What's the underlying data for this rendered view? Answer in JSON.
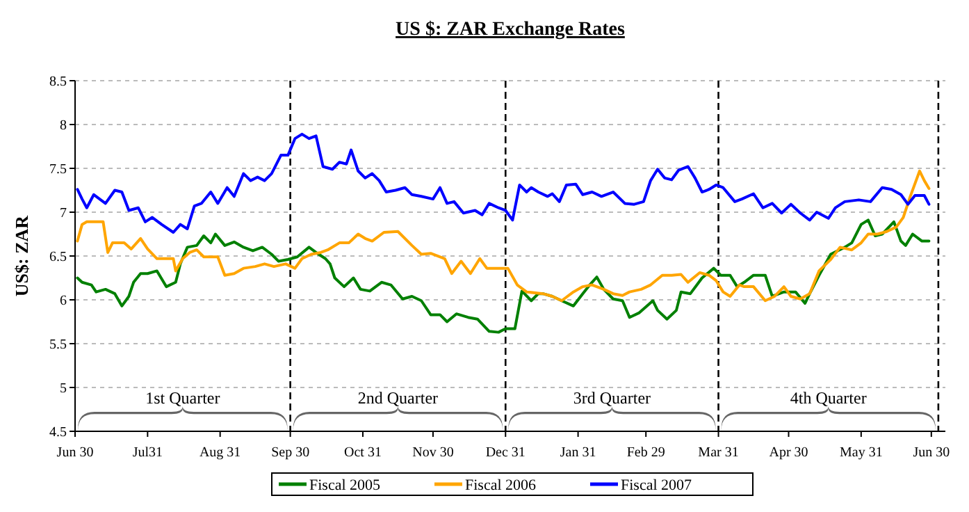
{
  "chart_data": {
    "type": "line",
    "title": "US $: ZAR Exchange Rates",
    "ylabel": "US$: ZAR",
    "xlim": [
      "2007-06-30",
      "2008-07-06"
    ],
    "xticks": [
      {
        "value": "2007-06-30",
        "label": "Jun 30"
      },
      {
        "value": "2007-07-31",
        "label": "Jul31"
      },
      {
        "value": "2007-08-31",
        "label": "Aug 31"
      },
      {
        "value": "2007-09-30",
        "label": "Sep 30"
      },
      {
        "value": "2007-10-31",
        "label": "Oct 31"
      },
      {
        "value": "2007-11-30",
        "label": "Nov 30"
      },
      {
        "value": "2007-12-31",
        "label": "Dec 31"
      },
      {
        "value": "2008-01-31",
        "label": "Jan 31"
      },
      {
        "value": "2008-02-29",
        "label": "Feb 29"
      },
      {
        "value": "2008-03-31",
        "label": "Mar 31"
      },
      {
        "value": "2008-04-30",
        "label": "Apr 30"
      },
      {
        "value": "2008-05-31",
        "label": "May 31"
      },
      {
        "value": "2008-06-30",
        "label": "Jun 30"
      }
    ],
    "ylim": [
      4.5,
      8.5
    ],
    "yticks": [
      4.5,
      5,
      5.5,
      6,
      6.5,
      7,
      7.5,
      8,
      8.5
    ],
    "grid": "y",
    "legend": "bottom",
    "marker": "none",
    "line_style": "solid",
    "ref_lines": [
      {
        "axis": "x",
        "value": "2007-09-30",
        "color": "#000000",
        "line_style": "dashed"
      },
      {
        "axis": "x",
        "value": "2007-12-31",
        "color": "#000000",
        "line_style": "dashed"
      },
      {
        "axis": "x",
        "value": "2008-03-31",
        "color": "#000000",
        "line_style": "dashed"
      },
      {
        "axis": "x",
        "value": "2008-07-03",
        "color": "#000000",
        "line_style": "dashed"
      }
    ],
    "annotations": [
      "1st Quarter",
      "2nd Quarter",
      "3rd Quarter",
      "4th Quarter"
    ],
    "series": [
      {
        "name": "Fiscal 2005",
        "color": "#008000",
        "x": [
          "2007-07-01",
          "2007-07-03",
          "2007-07-07",
          "2007-07-09",
          "2007-07-13",
          "2007-07-17",
          "2007-07-20",
          "2007-07-23",
          "2007-07-25",
          "2007-07-28",
          "2007-07-31",
          "2007-08-04",
          "2007-08-08",
          "2007-08-12",
          "2007-08-14",
          "2007-08-17",
          "2007-08-21",
          "2007-08-24",
          "2007-08-27",
          "2007-08-29",
          "2007-09-02",
          "2007-09-06",
          "2007-09-10",
          "2007-09-14",
          "2007-09-18",
          "2007-09-22",
          "2007-09-25",
          "2007-09-29",
          "2007-10-03",
          "2007-10-08",
          "2007-10-11",
          "2007-10-15",
          "2007-10-17",
          "2007-10-19",
          "2007-10-23",
          "2007-10-27",
          "2007-10-30",
          "2007-11-03",
          "2007-11-08",
          "2007-11-12",
          "2007-11-17",
          "2007-11-21",
          "2007-11-25",
          "2007-11-29",
          "2007-12-03",
          "2007-12-06",
          "2007-12-10",
          "2007-12-15",
          "2007-12-19",
          "2007-12-24",
          "2007-12-28",
          "2007-12-31",
          "2008-01-04",
          "2008-01-07",
          "2008-01-11",
          "2008-01-14",
          "2008-01-16",
          "2008-01-20",
          "2008-01-24",
          "2008-01-29",
          "2008-02-02",
          "2008-02-05",
          "2008-02-08",
          "2008-02-11",
          "2008-02-15",
          "2008-02-19",
          "2008-02-22",
          "2008-02-26",
          "2008-03-03",
          "2008-03-05",
          "2008-03-09",
          "2008-03-13",
          "2008-03-15",
          "2008-03-19",
          "2008-03-24",
          "2008-03-29",
          "2008-04-01",
          "2008-04-05",
          "2008-04-08",
          "2008-04-11",
          "2008-04-15",
          "2008-04-20",
          "2008-04-23",
          "2008-04-28",
          "2008-05-03",
          "2008-05-07",
          "2008-05-09",
          "2008-05-13",
          "2008-05-18",
          "2008-05-24",
          "2008-05-27",
          "2008-05-31",
          "2008-06-03",
          "2008-06-06",
          "2008-06-09",
          "2008-06-14",
          "2008-06-17",
          "2008-06-19",
          "2008-06-22",
          "2008-06-26",
          "2008-06-29"
        ],
        "values": [
          6.25,
          6.2,
          6.17,
          6.09,
          6.12,
          6.07,
          5.93,
          6.04,
          6.2,
          6.3,
          6.3,
          6.33,
          6.15,
          6.2,
          6.41,
          6.6,
          6.62,
          6.73,
          6.65,
          6.75,
          6.62,
          6.66,
          6.6,
          6.56,
          6.6,
          6.52,
          6.44,
          6.46,
          6.49,
          6.6,
          6.54,
          6.47,
          6.41,
          6.25,
          6.15,
          6.25,
          6.12,
          6.1,
          6.2,
          6.17,
          6.01,
          6.04,
          5.99,
          5.83,
          5.83,
          5.75,
          5.84,
          5.8,
          5.78,
          5.64,
          5.63,
          5.67,
          5.67,
          6.1,
          5.99,
          6.07,
          6.07,
          6.04,
          5.99,
          5.93,
          6.07,
          6.17,
          6.26,
          6.12,
          6.01,
          5.99,
          5.8,
          5.85,
          5.99,
          5.88,
          5.78,
          5.88,
          6.09,
          6.07,
          6.25,
          6.36,
          6.28,
          6.28,
          6.15,
          6.2,
          6.28,
          6.28,
          6.04,
          6.09,
          6.09,
          5.96,
          6.07,
          6.28,
          6.52,
          6.6,
          6.65,
          6.86,
          6.91,
          6.73,
          6.75,
          6.89,
          6.67,
          6.62,
          6.75,
          6.67,
          6.67
        ]
      },
      {
        "name": "Fiscal 2006",
        "color": "#ffa500",
        "x": [
          "2007-07-01",
          "2007-07-03",
          "2007-07-05",
          "2007-07-12",
          "2007-07-14",
          "2007-07-16",
          "2007-07-21",
          "2007-07-24",
          "2007-07-28",
          "2007-07-31",
          "2007-08-04",
          "2007-08-11",
          "2007-08-12",
          "2007-08-15",
          "2007-08-18",
          "2007-08-21",
          "2007-08-24",
          "2007-08-30",
          "2007-09-02",
          "2007-09-06",
          "2007-09-10",
          "2007-09-15",
          "2007-09-19",
          "2007-09-23",
          "2007-09-28",
          "2007-10-02",
          "2007-10-05",
          "2007-10-09",
          "2007-10-13",
          "2007-10-16",
          "2007-10-21",
          "2007-10-25",
          "2007-10-29",
          "2007-11-01",
          "2007-11-04",
          "2007-11-09",
          "2007-11-15",
          "2007-11-21",
          "2007-11-25",
          "2007-11-29",
          "2007-12-05",
          "2007-12-08",
          "2007-12-12",
          "2007-12-16",
          "2007-12-20",
          "2007-12-23",
          "2007-12-28",
          "2008-01-01",
          "2008-01-05",
          "2008-01-09",
          "2008-01-16",
          "2008-01-20",
          "2008-01-24",
          "2008-01-29",
          "2008-02-02",
          "2008-02-06",
          "2008-02-11",
          "2008-02-15",
          "2008-02-19",
          "2008-02-22",
          "2008-02-27",
          "2008-03-02",
          "2008-03-07",
          "2008-03-11",
          "2008-03-15",
          "2008-03-18",
          "2008-03-23",
          "2008-03-27",
          "2008-03-30",
          "2008-04-02",
          "2008-04-05",
          "2008-04-09",
          "2008-04-11",
          "2008-04-15",
          "2008-04-20",
          "2008-04-24",
          "2008-04-28",
          "2008-05-01",
          "2008-05-05",
          "2008-05-09",
          "2008-05-13",
          "2008-05-18",
          "2008-05-22",
          "2008-05-27",
          "2008-05-31",
          "2008-06-03",
          "2008-06-07",
          "2008-06-11",
          "2008-06-15",
          "2008-06-18",
          "2008-06-21",
          "2008-06-25",
          "2008-06-27",
          "2008-06-29"
        ],
        "values": [
          6.67,
          6.86,
          6.89,
          6.89,
          6.54,
          6.65,
          6.65,
          6.58,
          6.7,
          6.58,
          6.47,
          6.47,
          6.33,
          6.47,
          6.54,
          6.57,
          6.49,
          6.49,
          6.28,
          6.3,
          6.36,
          6.38,
          6.41,
          6.38,
          6.41,
          6.36,
          6.47,
          6.52,
          6.54,
          6.57,
          6.65,
          6.65,
          6.75,
          6.7,
          6.67,
          6.77,
          6.78,
          6.62,
          6.52,
          6.53,
          6.47,
          6.3,
          6.44,
          6.3,
          6.47,
          6.36,
          6.36,
          6.36,
          6.17,
          6.09,
          6.07,
          6.04,
          5.99,
          6.09,
          6.15,
          6.17,
          6.12,
          6.07,
          6.05,
          6.09,
          6.12,
          6.17,
          6.28,
          6.28,
          6.29,
          6.2,
          6.31,
          6.28,
          6.22,
          6.09,
          6.04,
          6.17,
          6.15,
          6.15,
          5.99,
          6.04,
          6.15,
          6.04,
          6.01,
          6.07,
          6.33,
          6.46,
          6.6,
          6.57,
          6.65,
          6.75,
          6.75,
          6.78,
          6.83,
          6.94,
          7.18,
          7.47,
          7.36,
          7.27
        ]
      },
      {
        "name": "Fiscal 2007",
        "color": "#0000ff",
        "x": [
          "2007-07-01",
          "2007-07-03",
          "2007-07-05",
          "2007-07-08",
          "2007-07-13",
          "2007-07-17",
          "2007-07-20",
          "2007-07-23",
          "2007-07-27",
          "2007-07-30",
          "2007-08-02",
          "2007-08-06",
          "2007-08-11",
          "2007-08-14",
          "2007-08-17",
          "2007-08-20",
          "2007-08-23",
          "2007-08-27",
          "2007-08-30",
          "2007-09-03",
          "2007-09-06",
          "2007-09-10",
          "2007-09-13",
          "2007-09-16",
          "2007-09-19",
          "2007-09-22",
          "2007-09-26",
          "2007-09-29",
          "2007-10-02",
          "2007-10-05",
          "2007-10-08",
          "2007-10-11",
          "2007-10-14",
          "2007-10-18",
          "2007-10-21",
          "2007-10-24",
          "2007-10-26",
          "2007-10-29",
          "2007-11-01",
          "2007-11-04",
          "2007-11-07",
          "2007-11-10",
          "2007-11-14",
          "2007-11-18",
          "2007-11-21",
          "2007-11-25",
          "2007-11-30",
          "2007-12-03",
          "2007-12-06",
          "2007-12-09",
          "2007-12-13",
          "2007-12-18",
          "2007-12-21",
          "2007-12-24",
          "2007-12-28",
          "2007-12-31",
          "2008-01-03",
          "2008-01-06",
          "2008-01-09",
          "2008-01-11",
          "2008-01-14",
          "2008-01-18",
          "2008-01-20",
          "2008-01-23",
          "2008-01-26",
          "2008-01-30",
          "2008-02-02",
          "2008-02-06",
          "2008-02-10",
          "2008-02-15",
          "2008-02-20",
          "2008-02-24",
          "2008-02-28",
          "2008-03-02",
          "2008-03-05",
          "2008-03-08",
          "2008-03-11",
          "2008-03-14",
          "2008-03-18",
          "2008-03-21",
          "2008-03-24",
          "2008-03-27",
          "2008-03-30",
          "2008-04-02",
          "2008-04-07",
          "2008-04-10",
          "2008-04-15",
          "2008-04-19",
          "2008-04-23",
          "2008-04-27",
          "2008-05-01",
          "2008-05-05",
          "2008-05-09",
          "2008-05-12",
          "2008-05-17",
          "2008-05-20",
          "2008-05-24",
          "2008-05-30",
          "2008-06-04",
          "2008-06-09",
          "2008-06-13",
          "2008-06-17",
          "2008-06-20",
          "2008-06-23",
          "2008-06-27",
          "2008-06-29"
        ],
        "values": [
          7.26,
          7.15,
          7.05,
          7.2,
          7.1,
          7.25,
          7.23,
          7.02,
          7.05,
          6.89,
          6.94,
          6.86,
          6.77,
          6.86,
          6.81,
          7.07,
          7.1,
          7.23,
          7.1,
          7.28,
          7.18,
          7.44,
          7.36,
          7.4,
          7.36,
          7.44,
          7.65,
          7.65,
          7.84,
          7.89,
          7.84,
          7.87,
          7.52,
          7.49,
          7.57,
          7.55,
          7.71,
          7.47,
          7.39,
          7.44,
          7.36,
          7.23,
          7.25,
          7.28,
          7.2,
          7.18,
          7.15,
          7.28,
          7.1,
          7.12,
          6.99,
          7.02,
          6.97,
          7.1,
          7.05,
          7.02,
          6.91,
          7.31,
          7.23,
          7.28,
          7.23,
          7.18,
          7.21,
          7.12,
          7.31,
          7.32,
          7.2,
          7.23,
          7.18,
          7.23,
          7.1,
          7.09,
          7.12,
          7.36,
          7.49,
          7.39,
          7.37,
          7.48,
          7.52,
          7.39,
          7.23,
          7.26,
          7.31,
          7.28,
          7.12,
          7.15,
          7.21,
          7.05,
          7.1,
          6.99,
          7.09,
          6.99,
          6.91,
          7.0,
          6.93,
          7.05,
          7.12,
          7.14,
          7.12,
          7.28,
          7.26,
          7.2,
          7.09,
          7.19,
          7.19,
          7.09
        ]
      }
    ]
  }
}
